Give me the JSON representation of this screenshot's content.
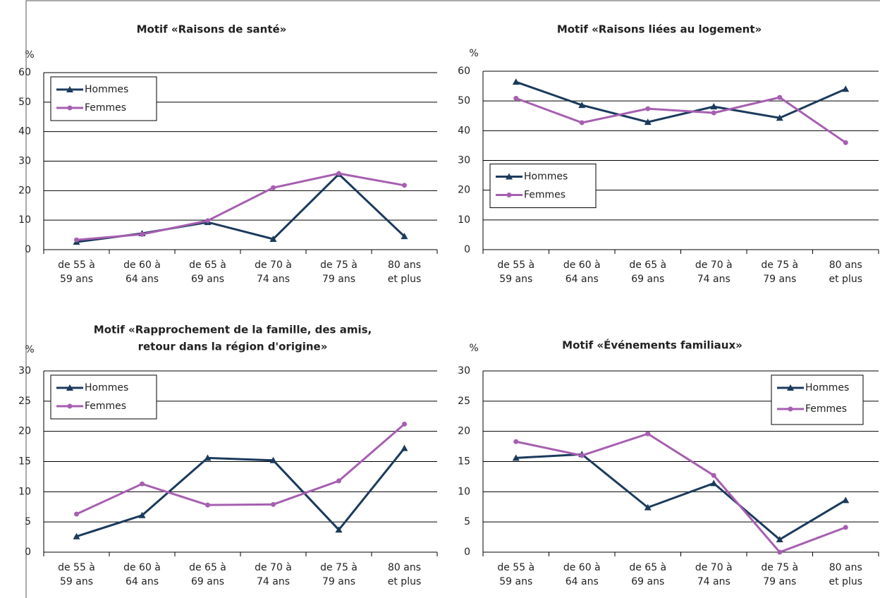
{
  "chart_data": [
    {
      "type": "line",
      "title": [
        "Motif «Raisons de santé»"
      ],
      "y_label": "%",
      "categories": [
        [
          "de 55 à",
          "59 ans"
        ],
        [
          "de 60 à",
          "64 ans"
        ],
        [
          "de 65 à",
          "69 ans"
        ],
        [
          "de 70 à",
          "74 ans"
        ],
        [
          "de 75 à",
          "79 ans"
        ],
        [
          "80 ans",
          "et plus"
        ]
      ],
      "ylim": [
        0,
        60
      ],
      "yticks": [
        0,
        10,
        20,
        30,
        40,
        50,
        60
      ],
      "grid": true,
      "legend": "upper-left",
      "series": [
        {
          "name": "Hommes",
          "color": "#1b3a5c",
          "marker": "triangle",
          "values": [
            2.6,
            5.5,
            9.3,
            3.6,
            25.6,
            4.5
          ]
        },
        {
          "name": "Femmes",
          "color": "#a65fb0",
          "marker": "circle",
          "values": [
            3.3,
            5.2,
            9.8,
            21,
            25.8,
            21.8
          ]
        }
      ]
    },
    {
      "type": "line",
      "title": [
        "Motif «Raisons liées au logement»"
      ],
      "y_label": "%",
      "categories": [
        [
          "de 55 à",
          "59 ans"
        ],
        [
          "de 60 à",
          "64 ans"
        ],
        [
          "de 65 à",
          "69 ans"
        ],
        [
          "de 70 à",
          "74 ans"
        ],
        [
          "de 75 à",
          "79 ans"
        ],
        [
          "80 ans",
          "et plus"
        ]
      ],
      "ylim": [
        0,
        60
      ],
      "yticks": [
        0,
        10,
        20,
        30,
        40,
        50,
        60
      ],
      "grid": true,
      "legend": "center-left",
      "series": [
        {
          "name": "Hommes",
          "color": "#1b3a5c",
          "marker": "triangle",
          "values": [
            56.4,
            48.6,
            42.9,
            48.1,
            44.3,
            54
          ]
        },
        {
          "name": "Femmes",
          "color": "#a65fb0",
          "marker": "circle",
          "values": [
            50.9,
            42.7,
            47.4,
            46,
            51.2,
            36
          ]
        }
      ]
    },
    {
      "type": "line",
      "title": [
        "Motif «Rapprochement de la famille, des amis,",
        "retour dans la région d'origine»"
      ],
      "y_label": "%",
      "categories": [
        [
          "de 55 à",
          "59 ans"
        ],
        [
          "de 60 à",
          "64 ans"
        ],
        [
          "de 65 à",
          "69 ans"
        ],
        [
          "de 70 à",
          "74 ans"
        ],
        [
          "de 75 à",
          "79 ans"
        ],
        [
          "80 ans",
          "et plus"
        ]
      ],
      "ylim": [
        0,
        30
      ],
      "yticks": [
        0,
        5,
        10,
        15,
        20,
        25,
        30
      ],
      "grid": true,
      "legend": "upper-left",
      "series": [
        {
          "name": "Hommes",
          "color": "#1b3a5c",
          "marker": "triangle",
          "values": [
            2.6,
            6.1,
            15.6,
            15.2,
            3.7,
            17.2
          ]
        },
        {
          "name": "Femmes",
          "color": "#a65fb0",
          "marker": "circle",
          "values": [
            6.3,
            11.3,
            7.8,
            7.9,
            11.8,
            21.2
          ]
        }
      ]
    },
    {
      "type": "line",
      "title": [
        "Motif «Événements familiaux»"
      ],
      "y_label": "%",
      "categories": [
        [
          "de 55 à",
          "59 ans"
        ],
        [
          "de 60 à",
          "64 ans"
        ],
        [
          "de 65 à",
          "69 ans"
        ],
        [
          "de 70 à",
          "74 ans"
        ],
        [
          "de 75 à",
          "79 ans"
        ],
        [
          "80 ans",
          "et plus"
        ]
      ],
      "ylim": [
        0,
        30
      ],
      "yticks": [
        0,
        5,
        10,
        15,
        20,
        25,
        30
      ],
      "grid": true,
      "legend": "upper-right",
      "series": [
        {
          "name": "Hommes",
          "color": "#1b3a5c",
          "marker": "triangle",
          "values": [
            15.6,
            16.2,
            7.4,
            11.4,
            2.1,
            8.6
          ]
        },
        {
          "name": "Femmes",
          "color": "#a65fb0",
          "marker": "circle",
          "values": [
            18.3,
            16,
            19.6,
            12.7,
            0,
            4.1
          ]
        }
      ]
    }
  ]
}
